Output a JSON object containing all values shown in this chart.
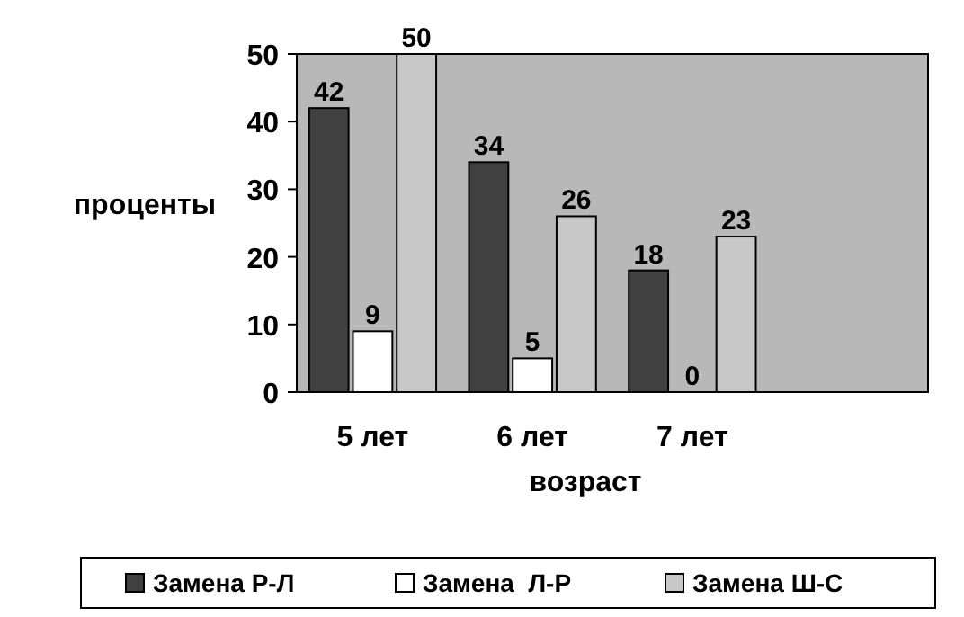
{
  "chart_data": {
    "type": "bar",
    "xlabel": "возраст",
    "ylabel": "проценты",
    "categories": [
      "5 лет",
      "6 лет",
      "7 лет",
      null
    ],
    "series": [
      {
        "name": "Замена Р-Л",
        "color": "#404040",
        "values": [
          42,
          34,
          18,
          null
        ]
      },
      {
        "name": "Замена  Л-Р",
        "color": "#ffffff",
        "values": [
          9,
          5,
          0,
          null
        ]
      },
      {
        "name": "Замена Ш-С",
        "color": "#c8c8c8",
        "values": [
          50,
          26,
          23,
          null
        ]
      }
    ],
    "ylim": [
      0,
      50
    ],
    "yticks": [
      0,
      10,
      20,
      30,
      40,
      50
    ],
    "data_labels": true,
    "legend": "bottom"
  }
}
